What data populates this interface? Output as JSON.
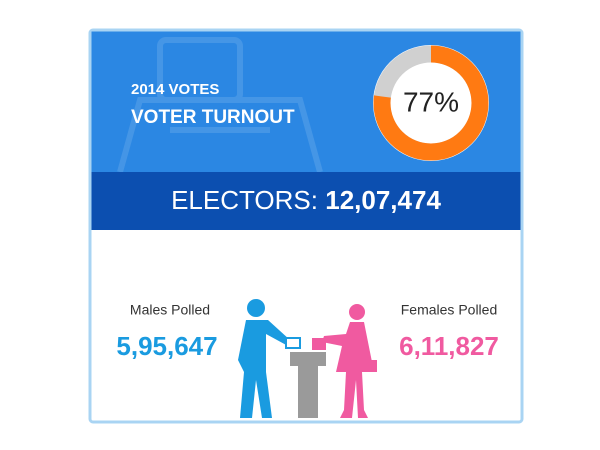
{
  "header": {
    "subtitle": "2014 VOTES",
    "title": "VOTER TURNOUT"
  },
  "turnout": {
    "value": 77,
    "label": "77%"
  },
  "electors": {
    "label": "ELECTORS:",
    "value": "12,07,474"
  },
  "males": {
    "label": "Males Polled",
    "value": "5,95,647"
  },
  "females": {
    "label": "Females Polled",
    "value": "6,11,827"
  }
}
